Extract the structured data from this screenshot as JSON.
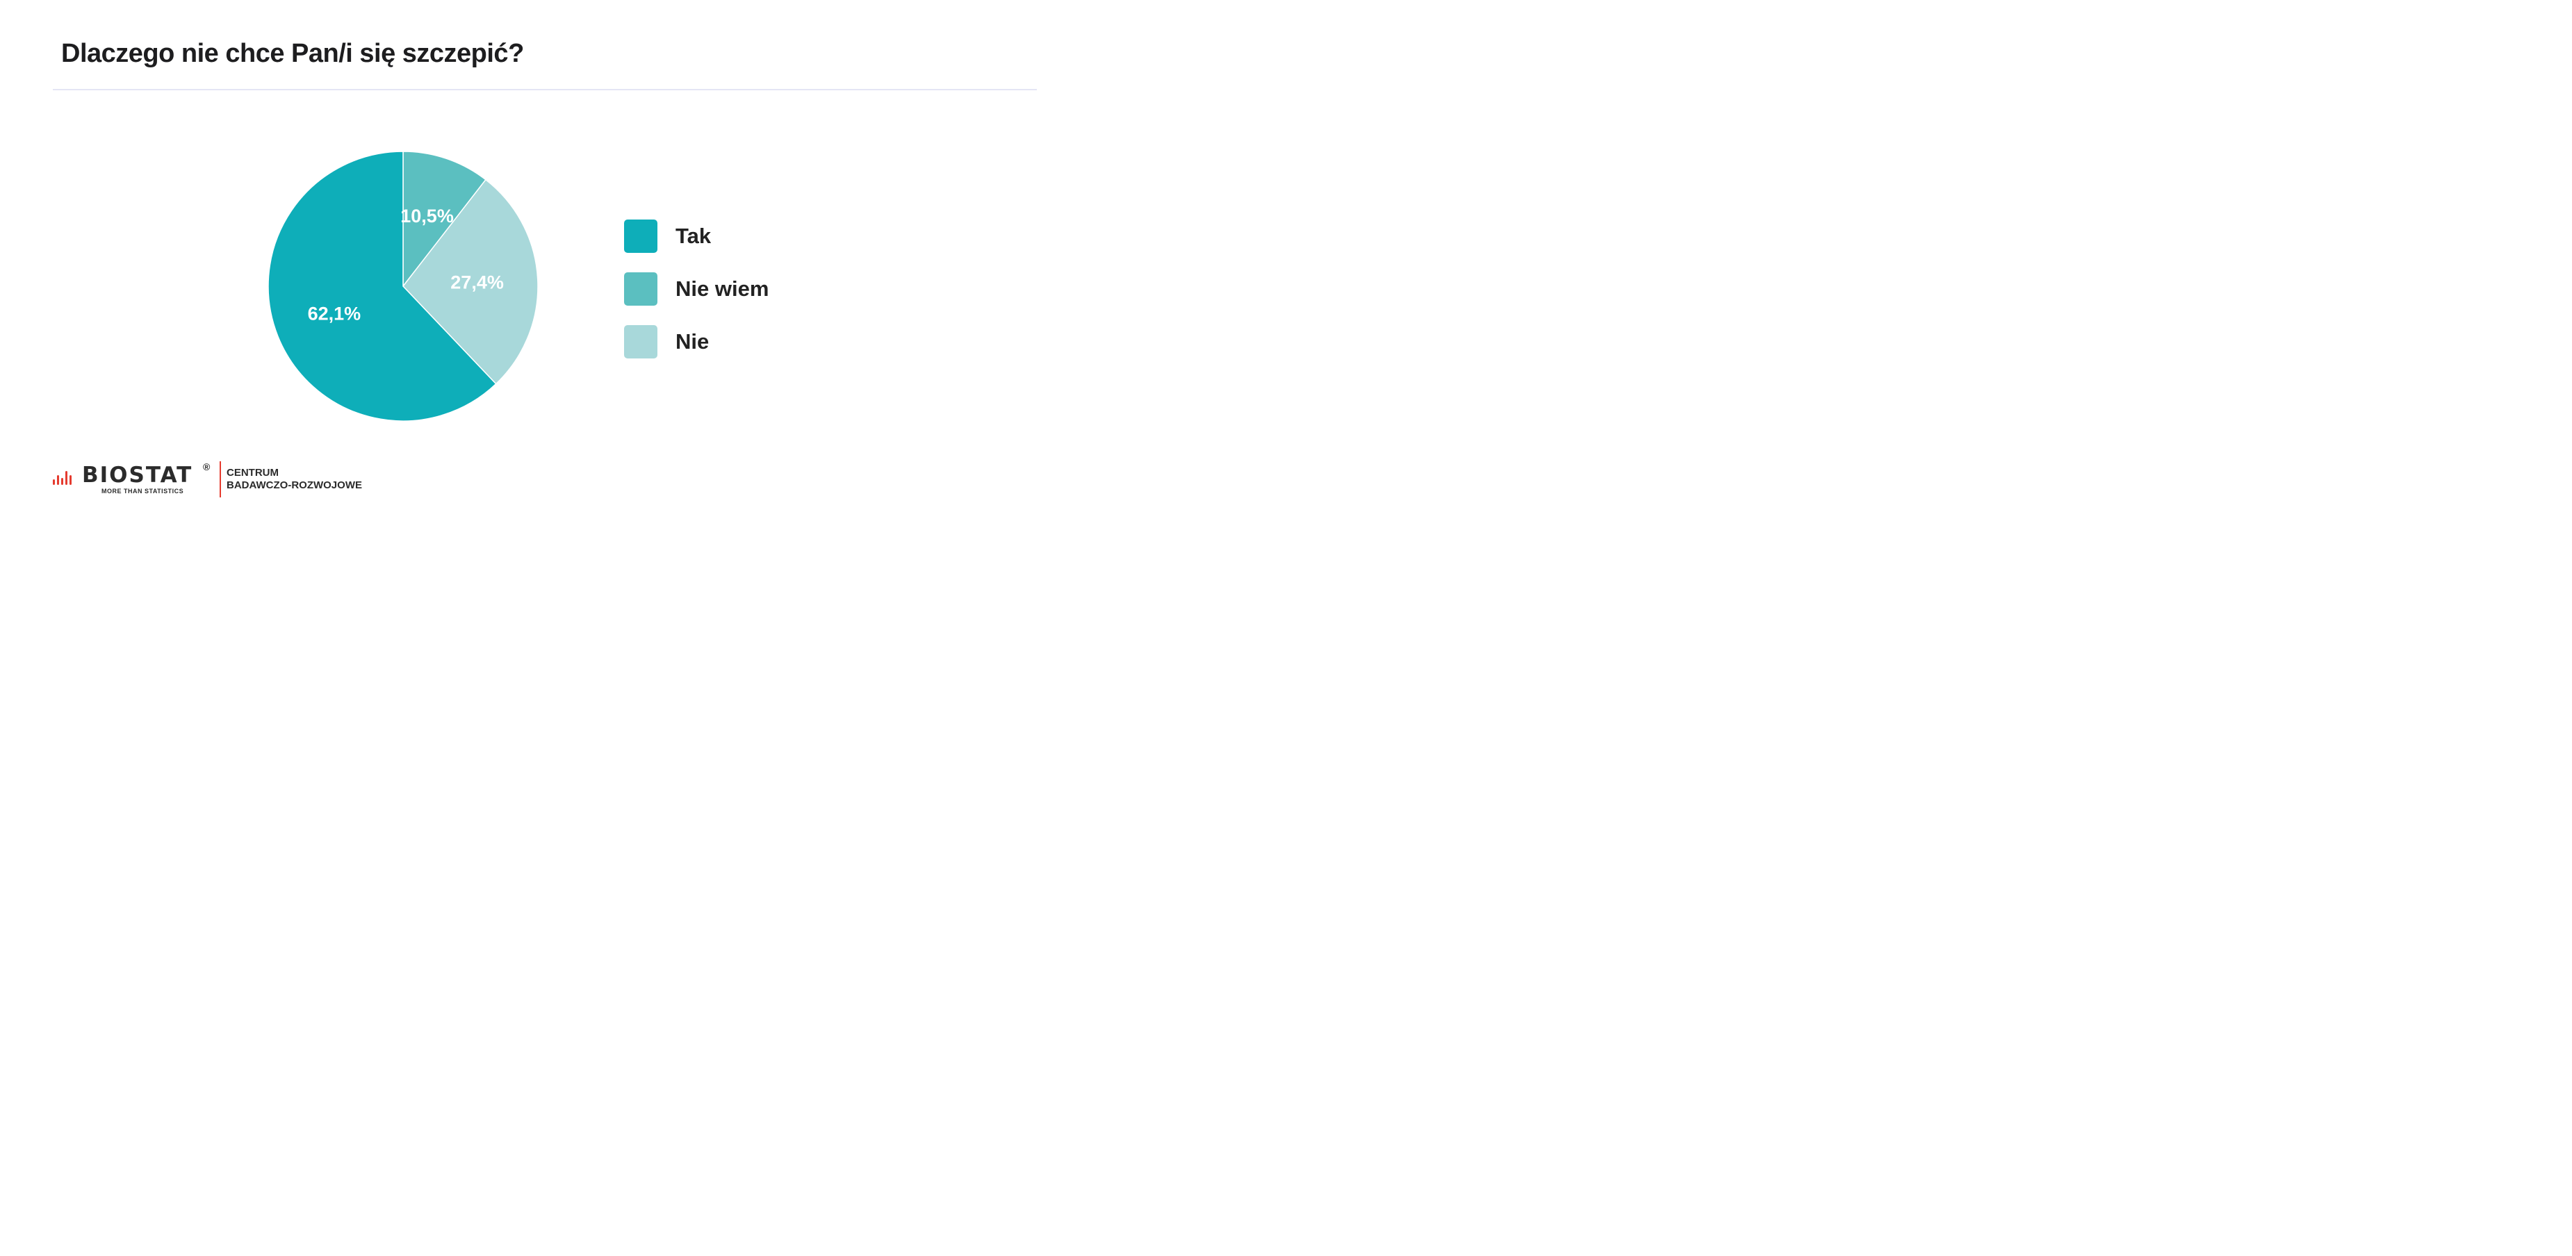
{
  "title": "Dlaczego nie chce Pan/i się szczepić?",
  "chart_data": {
    "type": "pie",
    "title": "Dlaczego nie chce Pan/i się szczepić?",
    "slices": [
      {
        "label": "Nie wiem",
        "value": 10.5,
        "value_label": "10,5%",
        "color": "#5bbfc0"
      },
      {
        "label": "Nie",
        "value": 27.4,
        "value_label": "27,4%",
        "color": "#a8d8da"
      },
      {
        "label": "Tak",
        "value": 62.1,
        "value_label": "62,1%",
        "color": "#0eaeb9"
      }
    ],
    "start_angle_deg": 0,
    "direction": "clockwise",
    "legend": {
      "placement": "right",
      "items": [
        {
          "label": "Tak",
          "color": "#0eaeb9"
        },
        {
          "label": "Nie wiem",
          "color": "#5bbfc0"
        },
        {
          "label": "Nie",
          "color": "#a8d8da"
        }
      ]
    }
  },
  "footer": {
    "logo_text": "BIOSTAT",
    "logo_registered": "®",
    "logo_tagline": "MORE THAN STATISTICS",
    "org_line1": "CENTRUM",
    "org_line2": "BADAWCZO-ROZWOJOWE",
    "accent_color": "#e53b2f"
  }
}
